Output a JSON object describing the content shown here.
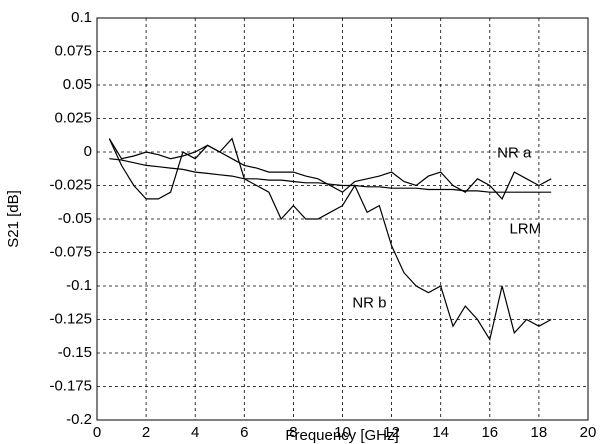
{
  "chart_data": {
    "type": "line",
    "xlabel": "Frequency [GHz]",
    "ylabel": "S21 [dB]",
    "x": [
      0.5,
      1,
      1.5,
      2,
      2.5,
      3,
      3.5,
      4,
      4.5,
      5,
      5.5,
      6,
      6.5,
      7,
      7.5,
      8,
      8.5,
      9,
      9.5,
      10,
      10.5,
      11,
      11.5,
      12,
      12.5,
      13,
      13.5,
      14,
      14.5,
      15,
      15.5,
      16,
      16.5,
      17,
      17.5,
      18,
      18.5
    ],
    "series": [
      {
        "name": "NR a",
        "color": "#000000",
        "values": [
          0.01,
          -0.005,
          -0.003,
          0,
          -0.002,
          -0.005,
          -0.003,
          0,
          0.005,
          0,
          -0.005,
          -0.01,
          -0.012,
          -0.015,
          -0.015,
          -0.015,
          -0.018,
          -0.02,
          -0.025,
          -0.03,
          -0.022,
          -0.02,
          -0.018,
          -0.015,
          -0.022,
          -0.025,
          -0.018,
          -0.015,
          -0.025,
          -0.03,
          -0.02,
          -0.025,
          -0.035,
          -0.015,
          -0.02,
          -0.025,
          -0.02
        ]
      },
      {
        "name": "LRM",
        "color": "#000000",
        "values": [
          -0.005,
          -0.006,
          -0.008,
          -0.01,
          -0.011,
          -0.012,
          -0.013,
          -0.015,
          -0.016,
          -0.017,
          -0.018,
          -0.02,
          -0.02,
          -0.021,
          -0.021,
          -0.022,
          -0.023,
          -0.023,
          -0.024,
          -0.025,
          -0.025,
          -0.026,
          -0.026,
          -0.027,
          -0.027,
          -0.027,
          -0.028,
          -0.028,
          -0.028,
          -0.029,
          -0.029,
          -0.03,
          -0.03,
          -0.03,
          -0.03,
          -0.03,
          -0.03
        ]
      },
      {
        "name": "NR b",
        "color": "#000000",
        "values": [
          0.01,
          -0.01,
          -0.025,
          -0.035,
          -0.035,
          -0.03,
          0,
          -0.005,
          0.005,
          0,
          0.01,
          -0.02,
          -0.025,
          -0.03,
          -0.05,
          -0.04,
          -0.05,
          -0.05,
          -0.045,
          -0.04,
          -0.025,
          -0.045,
          -0.04,
          -0.07,
          -0.09,
          -0.1,
          -0.105,
          -0.1,
          -0.13,
          -0.115,
          -0.125,
          -0.14,
          -0.1,
          -0.135,
          -0.125,
          -0.13,
          -0.125
        ]
      }
    ],
    "xlim": [
      0,
      20
    ],
    "xticks": [
      0,
      2,
      4,
      6,
      8,
      10,
      12,
      14,
      16,
      18,
      20
    ],
    "ylim": [
      -0.2,
      0.1
    ],
    "yticks": [
      -0.2,
      -0.175,
      -0.15,
      -0.125,
      -0.1,
      -0.075,
      -0.05,
      -0.025,
      0,
      0.025,
      0.05,
      0.075,
      0.1
    ],
    "grid": true
  }
}
